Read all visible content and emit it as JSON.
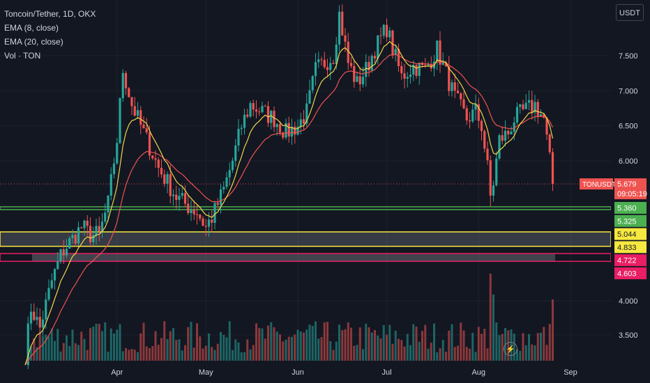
{
  "legend": {
    "symbol": "Toncoin/Tether, 1D, OKX",
    "ema8": "EMA (8, close)",
    "ema20": "EMA (20, close)",
    "volume": "Vol · TON"
  },
  "unit_button": "USDT",
  "icons": {
    "alert": "lightning-icon"
  },
  "colors": {
    "background": "#131722",
    "up": "#26a69a",
    "down": "#ef5350",
    "ema8": "#f0d64c",
    "ema20": "#ef5350",
    "green_line": "#4caf50",
    "yellow_zone": "#f7e83f",
    "pink_zone": "#e91e63",
    "text": "#d1d4dc"
  },
  "chart_data": {
    "type": "candlestick",
    "title": "Toncoin/Tether, 1D, OKX",
    "ylim": [
      3.2,
      8.3
    ],
    "y_ticks": [
      "7.500",
      "7.000",
      "6.500",
      "6.000",
      "4.000",
      "3.500"
    ],
    "x_ticks": [
      "Apr",
      "May",
      "Jun",
      "Jul",
      "Aug",
      "Sep"
    ],
    "last_price": {
      "symbol": "TONUSDT",
      "value": "5.679",
      "countdown": "09:05:19"
    },
    "price_labels": [
      {
        "value": "5.360",
        "color": "#4caf50"
      },
      {
        "value": "5.325",
        "color": "#4caf50"
      },
      {
        "value": "5.044",
        "color": "#f7e83f"
      },
      {
        "value": "4.833",
        "color": "#f7e83f"
      },
      {
        "value": "4.722",
        "color": "#e91e63"
      },
      {
        "value": "4.603",
        "color": "#e91e63"
      }
    ],
    "levels": [
      {
        "name": "green-support",
        "top": 5.36,
        "bottom": 5.325
      },
      {
        "name": "yellow-zone",
        "top": 5.044,
        "bottom": 4.833
      },
      {
        "name": "pink-zone",
        "top": 4.722,
        "bottom": 4.603
      }
    ],
    "anchors": [
      [
        "Mar 1",
        3.2
      ],
      [
        "Mar 3",
        3.9
      ],
      [
        "Mar 6",
        3.6
      ],
      [
        "Mar 10",
        4.3
      ],
      [
        "Mar 13",
        4.7
      ],
      [
        "Mar 16",
        4.9
      ],
      [
        "Mar 20",
        5.1
      ],
      [
        "Mar 23",
        5.0
      ],
      [
        "Mar 26",
        5.0
      ],
      [
        "Mar 29",
        5.4
      ],
      [
        "Apr 1",
        6.3
      ],
      [
        "Apr 3",
        7.3
      ],
      [
        "Apr 6",
        6.8
      ],
      [
        "Apr 9",
        6.5
      ],
      [
        "Apr 12",
        6.2
      ],
      [
        "Apr 15",
        5.9
      ],
      [
        "Apr 18",
        5.7
      ],
      [
        "Apr 21",
        5.5
      ],
      [
        "Apr 24",
        5.4
      ],
      [
        "Apr 28",
        5.3
      ],
      [
        "May 1",
        5.1
      ],
      [
        "May 4",
        5.3
      ],
      [
        "May 7",
        5.6
      ],
      [
        "May 10",
        6.0
      ],
      [
        "May 13",
        6.5
      ],
      [
        "May 16",
        6.8
      ],
      [
        "May 20",
        6.7
      ],
      [
        "May 24",
        6.6
      ],
      [
        "May 28",
        6.4
      ],
      [
        "Jun 1",
        6.5
      ],
      [
        "Jun 4",
        6.7
      ],
      [
        "Jun 7",
        7.3
      ],
      [
        "Jun 10",
        7.4
      ],
      [
        "Jun 13",
        7.5
      ],
      [
        "Jun 15",
        8.1
      ],
      [
        "Jun 18",
        7.4
      ],
      [
        "Jun 21",
        7.1
      ],
      [
        "Jun 24",
        7.3
      ],
      [
        "Jun 27",
        7.6
      ],
      [
        "Jul 1",
        7.9
      ],
      [
        "Jul 3",
        7.6
      ],
      [
        "Jul 6",
        7.2
      ],
      [
        "Jul 10",
        7.35
      ],
      [
        "Jul 14",
        7.3
      ],
      [
        "Jul 18",
        7.6
      ],
      [
        "Jul 20",
        7.35
      ],
      [
        "Jul 24",
        6.9
      ],
      [
        "Jul 28",
        6.6
      ],
      [
        "Jul 31",
        6.7
      ],
      [
        "Aug 2",
        6.5
      ],
      [
        "Aug 4",
        5.9
      ],
      [
        "Aug 5",
        5.5
      ],
      [
        "Aug 6",
        5.7
      ],
      [
        "Aug 8",
        6.3
      ],
      [
        "Aug 11",
        6.4
      ],
      [
        "Aug 13",
        6.6
      ],
      [
        "Aug 16",
        6.7
      ],
      [
        "Aug 20",
        6.8
      ],
      [
        "Aug 23",
        6.6
      ],
      [
        "Aug 25",
        6.0
      ],
      [
        "Aug 26",
        5.679
      ]
    ]
  }
}
